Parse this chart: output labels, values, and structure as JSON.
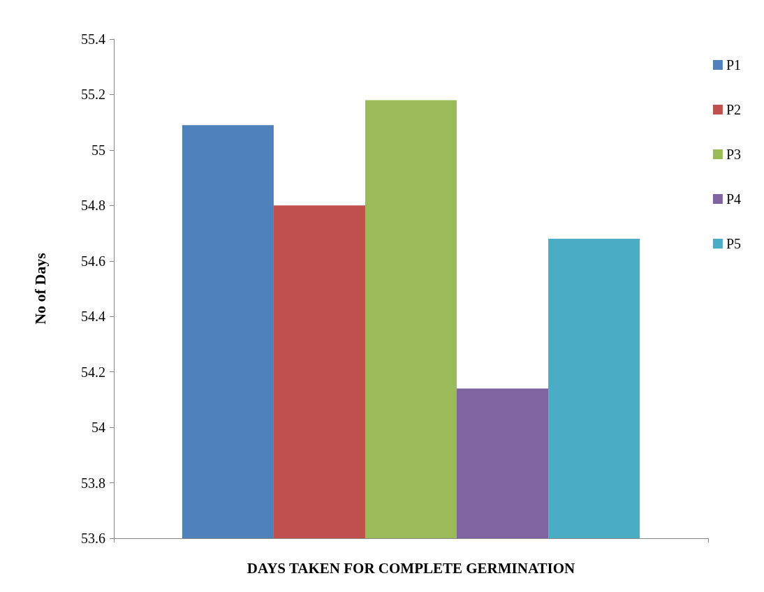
{
  "chart_data": {
    "type": "bar",
    "ylabel": "No of Days",
    "xlabel": "DAYS TAKEN FOR COMPLETE GERMINATION",
    "categories": [
      null
    ],
    "series": [
      {
        "name": "P1",
        "color": "#4f81bd",
        "values": [
          55.09
        ]
      },
      {
        "name": "P2",
        "color": "#c0504d",
        "values": [
          54.8
        ]
      },
      {
        "name": "P3",
        "color": "#9bbb59",
        "values": [
          55.18
        ]
      },
      {
        "name": "P4",
        "color": "#8064a2",
        "values": [
          54.14
        ]
      },
      {
        "name": "P5",
        "color": "#4bacc6",
        "values": [
          54.68
        ]
      }
    ],
    "ylim": [
      53.6,
      55.4
    ],
    "yticks": [
      53.6,
      53.8,
      54,
      54.2,
      54.4,
      54.6,
      54.8,
      55,
      55.2,
      55.4
    ],
    "grid": false,
    "legend": "right"
  }
}
